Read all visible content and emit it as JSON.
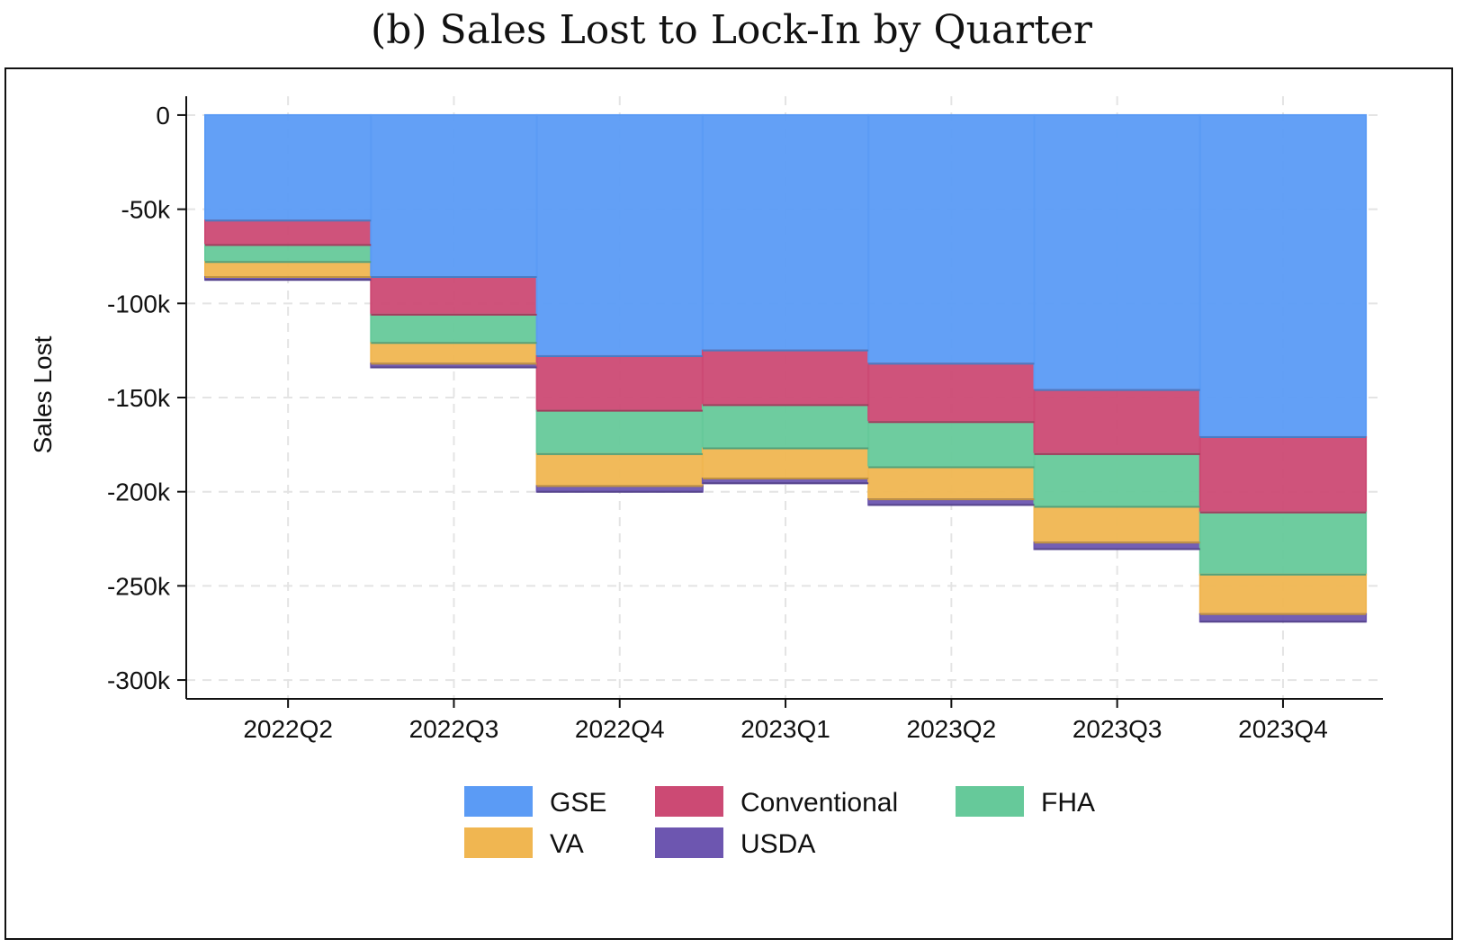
{
  "chart_data": {
    "type": "bar",
    "subtype": "stacked-step",
    "title": "(b) Sales Lost to Lock-In by Quarter",
    "ylabel": "Sales Lost",
    "xlabel": "",
    "ylim": [
      -310000,
      10000
    ],
    "yticks": [
      0,
      -50000,
      -100000,
      -150000,
      -200000,
      -250000,
      -300000
    ],
    "ytick_labels": [
      "0",
      "-50k",
      "-100k",
      "-150k",
      "-200k",
      "-250k",
      "-300k"
    ],
    "categories": [
      "2022Q2",
      "2022Q3",
      "2022Q4",
      "2023Q1",
      "2023Q2",
      "2023Q3",
      "2023Q4"
    ],
    "grid": true,
    "legend_position": "bottom",
    "series": [
      {
        "name": "GSE",
        "color": "#5B9BF5",
        "values": [
          -56000,
          -86000,
          -128000,
          -125000,
          -132000,
          -146000,
          -171000
        ]
      },
      {
        "name": "Conventional",
        "color": "#CC4A74",
        "values": [
          -13000,
          -20000,
          -29000,
          -29000,
          -31000,
          -34000,
          -40000
        ]
      },
      {
        "name": "FHA",
        "color": "#66C99A",
        "values": [
          -9000,
          -15000,
          -23000,
          -23000,
          -24000,
          -28000,
          -33000
        ]
      },
      {
        "name": "VA",
        "color": "#F0B651",
        "values": [
          -8000,
          -11000,
          -17000,
          -16000,
          -17000,
          -19000,
          -21000
        ]
      },
      {
        "name": "USDA",
        "color": "#6D56B0",
        "values": [
          -1500,
          -2000,
          -3000,
          -2500,
          -3000,
          -3500,
          -4000
        ]
      }
    ]
  }
}
